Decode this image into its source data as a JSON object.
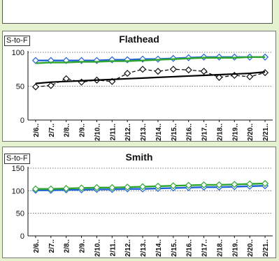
{
  "chart_data": [
    {
      "type": "line",
      "title": "Flathead",
      "ylabel": "S-to-F",
      "ylim": [
        0,
        100
      ],
      "yticks": [
        0,
        50,
        100
      ],
      "grid": "horizontal dotted",
      "x": [
        "2/6..",
        "2/7..",
        "2/8..",
        "2/9..",
        "2/10..",
        "2/11..",
        "2/12..",
        "2/13..",
        "2/14..",
        "2/15..",
        "2/16..",
        "2/17..",
        "2/18..",
        "2/19..",
        "2/20..",
        "2/21.."
      ],
      "series": [
        {
          "values": [
            88,
            88,
            88,
            88,
            88,
            89,
            89,
            90,
            90,
            91,
            92,
            93,
            93,
            93,
            93,
            93
          ],
          "color": "#1f63d6",
          "marker": "diamond-open",
          "line": "solid"
        },
        {
          "values": [
            84,
            85,
            85,
            86,
            86,
            87,
            87,
            88,
            89,
            90,
            91,
            92,
            92,
            92,
            93,
            93
          ],
          "color": "#2ea62e",
          "marker": "none",
          "line": "solid"
        },
        {
          "values": [
            49,
            51,
            61,
            56,
            59,
            57,
            69,
            75,
            72,
            75,
            74,
            72,
            63,
            66,
            64,
            70
          ],
          "color": "#111111",
          "marker": "diamond-open",
          "line": "dashed"
        },
        {
          "values": [
            54,
            56,
            57,
            58,
            59,
            60,
            61,
            62,
            63,
            64,
            65,
            66,
            67,
            68,
            69,
            71
          ],
          "color": "#000000",
          "marker": "none",
          "line": "trend"
        }
      ]
    },
    {
      "type": "line",
      "title": "Smith",
      "ylabel": "S-to-F",
      "ylim": [
        0,
        150
      ],
      "yticks": [
        0,
        50,
        100,
        150
      ],
      "grid": "horizontal dotted",
      "x": [
        "2/6..",
        "2/7..",
        "2/8..",
        "2/9..",
        "2/10..",
        "2/11..",
        "2/12..",
        "2/13..",
        "2/14..",
        "2/15..",
        "2/16..",
        "2/17..",
        "2/18..",
        "2/19..",
        "2/20..",
        "2/21.."
      ],
      "series": [
        {
          "values": [
            101,
            101,
            102,
            102,
            103,
            103,
            104,
            104,
            105,
            106,
            107,
            108,
            108,
            109,
            110,
            111
          ],
          "color": "#1f63d6",
          "marker": "diamond-open",
          "line": "solid"
        },
        {
          "values": [
            104,
            104,
            105,
            106,
            107,
            107,
            108,
            109,
            110,
            111,
            112,
            113,
            113,
            114,
            115,
            116
          ],
          "color": "#2ea62e",
          "marker": "diamond-open",
          "line": "solid"
        }
      ]
    }
  ]
}
